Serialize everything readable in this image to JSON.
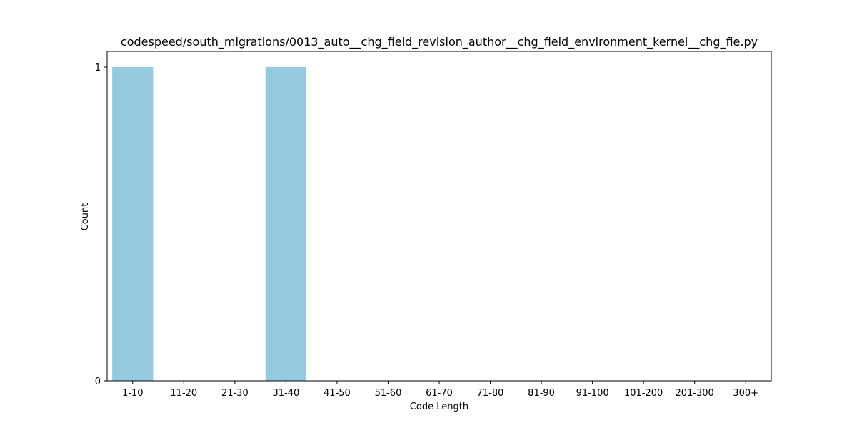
{
  "chart_data": {
    "type": "bar",
    "title": "codespeed/south_migrations/0013_auto__chg_field_revision_author__chg_field_environment_kernel__chg_fie.py",
    "xlabel": "Code Length",
    "ylabel": "Count",
    "categories": [
      "1-10",
      "11-20",
      "21-30",
      "31-40",
      "41-50",
      "51-60",
      "61-70",
      "71-80",
      "81-90",
      "91-100",
      "101-200",
      "201-300",
      "300+"
    ],
    "values": [
      1,
      0,
      0,
      1,
      0,
      0,
      0,
      0,
      0,
      0,
      0,
      0,
      0
    ],
    "yticks": [
      "0",
      "1"
    ],
    "ylim": [
      0,
      1.05
    ],
    "bar_color": "#95c9df",
    "grid": false,
    "legend": "none"
  }
}
